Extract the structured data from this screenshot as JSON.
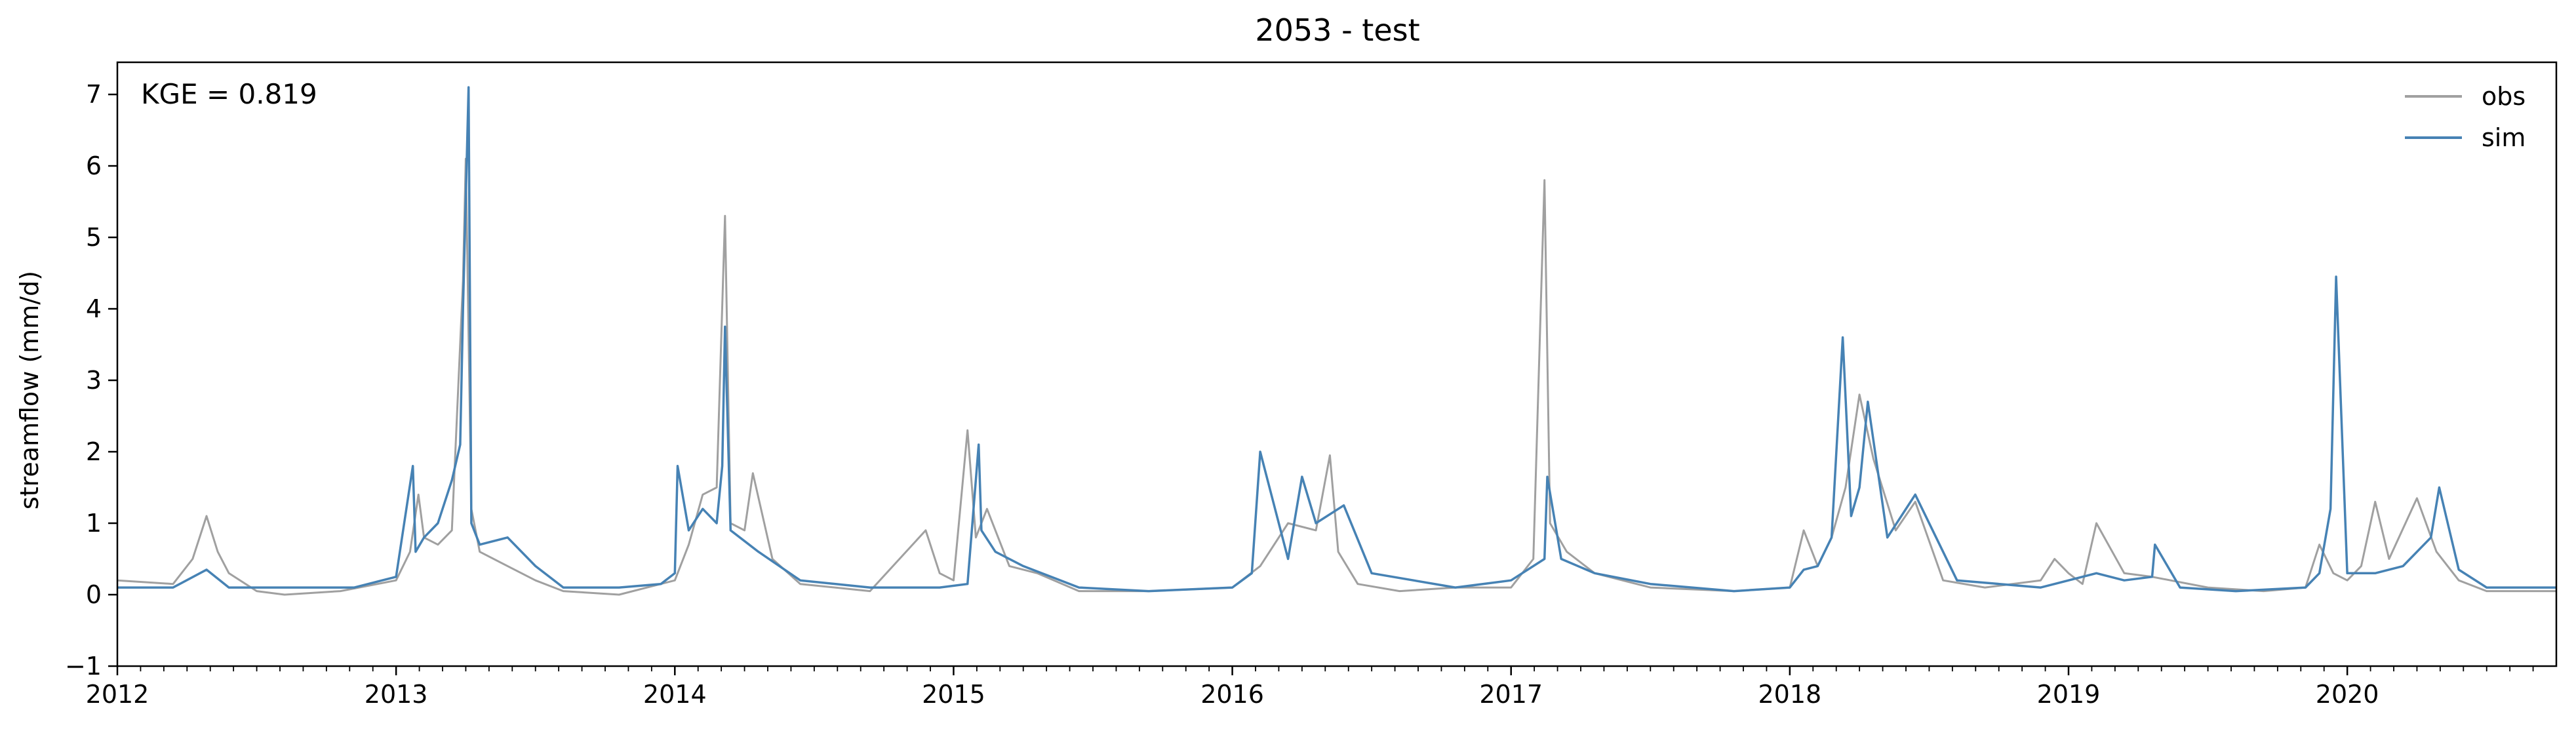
{
  "chart_data": {
    "type": "line",
    "title": "2053 - test",
    "xlabel": "",
    "ylabel": "streamflow (mm/d)",
    "annotation": "KGE = 0.819",
    "xlim": [
      2012.0,
      2020.75
    ],
    "ylim": [
      -1,
      7.45
    ],
    "x_ticks": [
      2012,
      2013,
      2014,
      2015,
      2016,
      2017,
      2018,
      2019,
      2020
    ],
    "x_tick_labels": [
      "2012",
      "2013",
      "2014",
      "2015",
      "2016",
      "2017",
      "2018",
      "2019",
      "2020"
    ],
    "y_ticks": [
      -1,
      0,
      1,
      2,
      3,
      4,
      5,
      6,
      7
    ],
    "y_tick_labels": [
      "−1",
      "0",
      "1",
      "2",
      "3",
      "4",
      "5",
      "6",
      "7"
    ],
    "grid": false,
    "legend_position": "top-right",
    "series": [
      {
        "name": "obs",
        "color": "#a0a0a0",
        "x": [
          2012.0,
          2012.2,
          2012.27,
          2012.32,
          2012.36,
          2012.4,
          2012.5,
          2012.6,
          2012.8,
          2013.0,
          2013.05,
          2013.08,
          2013.1,
          2013.15,
          2013.2,
          2013.24,
          2013.25,
          2013.27,
          2013.3,
          2013.4,
          2013.5,
          2013.6,
          2013.8,
          2014.0,
          2014.05,
          2014.1,
          2014.15,
          2014.18,
          2014.2,
          2014.25,
          2014.28,
          2014.35,
          2014.45,
          2014.7,
          2014.9,
          2014.95,
          2015.0,
          2015.05,
          2015.08,
          2015.12,
          2015.2,
          2015.3,
          2015.45,
          2015.7,
          2016.0,
          2016.1,
          2016.2,
          2016.3,
          2016.35,
          2016.38,
          2016.45,
          2016.6,
          2016.8,
          2017.0,
          2017.08,
          2017.12,
          2017.14,
          2017.2,
          2017.3,
          2017.5,
          2017.8,
          2018.0,
          2018.05,
          2018.1,
          2018.15,
          2018.2,
          2018.25,
          2018.3,
          2018.38,
          2018.45,
          2018.55,
          2018.7,
          2018.9,
          2018.95,
          2019.0,
          2019.05,
          2019.1,
          2019.2,
          2019.3,
          2019.5,
          2019.7,
          2019.85,
          2019.9,
          2019.95,
          2020.0,
          2020.05,
          2020.1,
          2020.15,
          2020.25,
          2020.32,
          2020.4,
          2020.5,
          2020.75
        ],
        "y": [
          0.2,
          0.15,
          0.5,
          1.1,
          0.6,
          0.3,
          0.05,
          0.0,
          0.05,
          0.2,
          0.6,
          1.4,
          0.8,
          0.7,
          0.9,
          4.4,
          6.1,
          1.2,
          0.6,
          0.4,
          0.2,
          0.05,
          0.0,
          0.2,
          0.7,
          1.4,
          1.5,
          5.3,
          1.0,
          0.9,
          1.7,
          0.5,
          0.15,
          0.05,
          0.9,
          0.3,
          0.2,
          2.3,
          0.8,
          1.2,
          0.4,
          0.3,
          0.05,
          0.05,
          0.1,
          0.4,
          1.0,
          0.9,
          1.95,
          0.6,
          0.15,
          0.05,
          0.1,
          0.1,
          0.5,
          5.8,
          1.0,
          0.6,
          0.3,
          0.1,
          0.05,
          0.1,
          0.9,
          0.4,
          0.8,
          1.5,
          2.8,
          1.9,
          0.9,
          1.3,
          0.2,
          0.1,
          0.2,
          0.5,
          0.3,
          0.15,
          1.0,
          0.3,
          0.25,
          0.1,
          0.05,
          0.1,
          0.7,
          0.3,
          0.2,
          0.4,
          1.3,
          0.5,
          1.35,
          0.6,
          0.2,
          0.05,
          0.05
        ]
      },
      {
        "name": "sim",
        "color": "#4682b4",
        "x": [
          2012.0,
          2012.2,
          2012.32,
          2012.4,
          2012.6,
          2012.85,
          2012.95,
          2013.0,
          2013.06,
          2013.07,
          2013.1,
          2013.15,
          2013.2,
          2013.23,
          2013.24,
          2013.26,
          2013.27,
          2013.3,
          2013.4,
          2013.5,
          2013.6,
          2013.8,
          2013.95,
          2014.0,
          2014.01,
          2014.05,
          2014.1,
          2014.15,
          2014.17,
          2014.18,
          2014.2,
          2014.3,
          2014.45,
          2014.7,
          2014.95,
          2015.05,
          2015.09,
          2015.1,
          2015.15,
          2015.25,
          2015.45,
          2015.7,
          2016.0,
          2016.07,
          2016.1,
          2016.2,
          2016.25,
          2016.3,
          2016.4,
          2016.5,
          2016.8,
          2017.0,
          2017.12,
          2017.13,
          2017.18,
          2017.3,
          2017.5,
          2017.8,
          2018.0,
          2018.05,
          2018.1,
          2018.15,
          2018.17,
          2018.19,
          2018.22,
          2018.25,
          2018.28,
          2018.35,
          2018.45,
          2018.6,
          2018.9,
          2019.0,
          2019.1,
          2019.2,
          2019.3,
          2019.31,
          2019.4,
          2019.6,
          2019.85,
          2019.9,
          2019.94,
          2019.96,
          2020.0,
          2020.1,
          2020.2,
          2020.3,
          2020.33,
          2020.4,
          2020.5,
          2020.75
        ],
        "y": [
          0.1,
          0.1,
          0.35,
          0.1,
          0.1,
          0.1,
          0.2,
          0.25,
          1.8,
          0.6,
          0.8,
          1.0,
          1.6,
          2.1,
          4.0,
          7.1,
          1.0,
          0.7,
          0.8,
          0.4,
          0.1,
          0.1,
          0.15,
          0.3,
          1.8,
          0.9,
          1.2,
          1.0,
          1.8,
          3.75,
          0.9,
          0.6,
          0.2,
          0.1,
          0.1,
          0.15,
          2.1,
          0.9,
          0.6,
          0.4,
          0.1,
          0.05,
          0.1,
          0.3,
          2.0,
          0.5,
          1.65,
          1.0,
          1.25,
          0.3,
          0.1,
          0.2,
          0.5,
          1.65,
          0.5,
          0.3,
          0.15,
          0.05,
          0.1,
          0.35,
          0.4,
          0.8,
          2.2,
          3.6,
          1.1,
          1.5,
          2.7,
          0.8,
          1.4,
          0.2,
          0.1,
          0.2,
          0.3,
          0.2,
          0.25,
          0.7,
          0.1,
          0.05,
          0.1,
          0.3,
          1.2,
          4.45,
          0.3,
          0.3,
          0.4,
          0.8,
          1.5,
          0.35,
          0.1,
          0.1
        ]
      }
    ]
  }
}
